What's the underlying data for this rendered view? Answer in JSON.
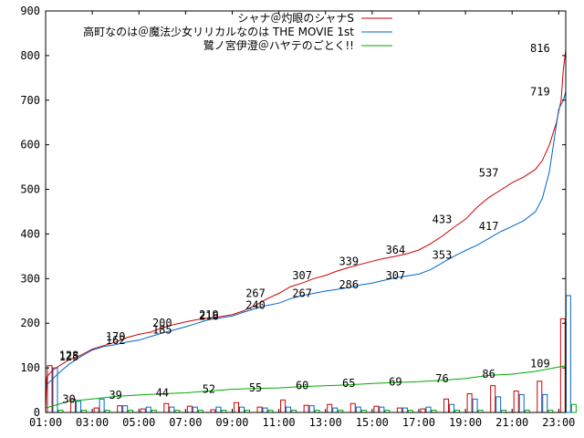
{
  "chart_data": {
    "type": "line",
    "y_ticks": [
      "0",
      "100",
      "200",
      "300",
      "400",
      "500",
      "600",
      "700",
      "800",
      "900"
    ],
    "ylim": [
      0,
      900
    ],
    "x_ticks": [
      "01:00",
      "03:00",
      "05:00",
      "07:00",
      "09:00",
      "11:00",
      "13:00",
      "15:00",
      "17:00",
      "19:00",
      "21:00",
      "23:00"
    ],
    "xlim": [
      1,
      23.3
    ],
    "grid": false,
    "legend_position": "top-right",
    "series": [
      {
        "name": "シャナ＠灼眼のシャナS",
        "color": "#cc0000",
        "points": [
          [
            1.0,
            5
          ],
          [
            1.05,
            80
          ],
          [
            1.3,
            95
          ],
          [
            1.6,
            105
          ],
          [
            2.0,
            118
          ],
          [
            2.5,
            128
          ],
          [
            3.0,
            142
          ],
          [
            3.5,
            150
          ],
          [
            4.0,
            158
          ],
          [
            4.5,
            168
          ],
          [
            5.0,
            175
          ],
          [
            5.5,
            180
          ],
          [
            6.0,
            190
          ],
          [
            6.5,
            197
          ],
          [
            7.0,
            203
          ],
          [
            7.5,
            208
          ],
          [
            8.0,
            212
          ],
          [
            8.5,
            215
          ],
          [
            9.0,
            219
          ],
          [
            9.5,
            228
          ],
          [
            10.0,
            240
          ],
          [
            10.5,
            255
          ],
          [
            11.0,
            267
          ],
          [
            11.5,
            282
          ],
          [
            12.0,
            290
          ],
          [
            12.5,
            300
          ],
          [
            13.0,
            307
          ],
          [
            13.5,
            317
          ],
          [
            14.0,
            325
          ],
          [
            14.5,
            332
          ],
          [
            15.0,
            339
          ],
          [
            15.5,
            345
          ],
          [
            16.0,
            350
          ],
          [
            16.5,
            356
          ],
          [
            17.0,
            364
          ],
          [
            17.5,
            378
          ],
          [
            18.0,
            395
          ],
          [
            18.5,
            415
          ],
          [
            19.0,
            433
          ],
          [
            19.5,
            460
          ],
          [
            20.0,
            482
          ],
          [
            20.5,
            498
          ],
          [
            21.0,
            515
          ],
          [
            21.5,
            528
          ],
          [
            22.0,
            545
          ],
          [
            22.3,
            565
          ],
          [
            22.6,
            600
          ],
          [
            22.9,
            650
          ],
          [
            23.1,
            700
          ],
          [
            23.2,
            770
          ],
          [
            23.3,
            812
          ]
        ],
        "labels": [
          {
            "x": 2.0,
            "y": 128,
            "text": "128"
          },
          {
            "x": 4.0,
            "y": 170,
            "text": "170"
          },
          {
            "x": 6.0,
            "y": 200,
            "text": "200"
          },
          {
            "x": 8.0,
            "y": 219,
            "text": "219"
          },
          {
            "x": 10.0,
            "y": 267,
            "text": "267"
          },
          {
            "x": 12.0,
            "y": 307,
            "text": "307"
          },
          {
            "x": 14.0,
            "y": 339,
            "text": "339"
          },
          {
            "x": 16.0,
            "y": 364,
            "text": "364"
          },
          {
            "x": 18.0,
            "y": 433,
            "text": "433"
          },
          {
            "x": 20.0,
            "y": 537,
            "text": "537"
          },
          {
            "x": 22.2,
            "y": 816,
            "text": "816"
          }
        ]
      },
      {
        "name": "高町なのは＠魔法少女リリカルなのは THE MOVIE 1st",
        "color": "#0066cc",
        "points": [
          [
            1.0,
            60
          ],
          [
            1.3,
            75
          ],
          [
            1.6,
            90
          ],
          [
            2.0,
            108
          ],
          [
            2.5,
            125
          ],
          [
            3.0,
            140
          ],
          [
            3.5,
            148
          ],
          [
            4.0,
            152
          ],
          [
            4.5,
            158
          ],
          [
            5.0,
            162
          ],
          [
            5.5,
            170
          ],
          [
            6.0,
            178
          ],
          [
            6.5,
            185
          ],
          [
            7.0,
            192
          ],
          [
            7.5,
            200
          ],
          [
            8.0,
            208
          ],
          [
            8.5,
            212
          ],
          [
            9.0,
            216
          ],
          [
            9.5,
            225
          ],
          [
            10.0,
            233
          ],
          [
            10.5,
            240
          ],
          [
            11.0,
            245
          ],
          [
            11.5,
            255
          ],
          [
            12.0,
            262
          ],
          [
            12.5,
            267
          ],
          [
            13.0,
            272
          ],
          [
            13.5,
            276
          ],
          [
            14.0,
            280
          ],
          [
            14.5,
            286
          ],
          [
            15.0,
            290
          ],
          [
            15.5,
            296
          ],
          [
            16.0,
            302
          ],
          [
            16.5,
            306
          ],
          [
            17.0,
            310
          ],
          [
            17.5,
            320
          ],
          [
            18.0,
            335
          ],
          [
            18.5,
            350
          ],
          [
            19.0,
            363
          ],
          [
            19.5,
            375
          ],
          [
            20.0,
            390
          ],
          [
            20.5,
            405
          ],
          [
            21.0,
            417
          ],
          [
            21.5,
            430
          ],
          [
            22.0,
            450
          ],
          [
            22.3,
            480
          ],
          [
            22.6,
            540
          ],
          [
            22.8,
            610
          ],
          [
            23.0,
            680
          ],
          [
            23.2,
            700
          ],
          [
            23.3,
            719
          ]
        ],
        "labels": [
          {
            "x": 2.0,
            "y": 125,
            "text": "125"
          },
          {
            "x": 4.0,
            "y": 162,
            "text": "162"
          },
          {
            "x": 6.0,
            "y": 185,
            "text": "185"
          },
          {
            "x": 8.0,
            "y": 216,
            "text": "216"
          },
          {
            "x": 10.0,
            "y": 240,
            "text": "240"
          },
          {
            "x": 12.0,
            "y": 267,
            "text": "267"
          },
          {
            "x": 14.0,
            "y": 286,
            "text": "286"
          },
          {
            "x": 16.0,
            "y": 307,
            "text": "307"
          },
          {
            "x": 18.0,
            "y": 353,
            "text": "353"
          },
          {
            "x": 20.0,
            "y": 417,
            "text": "417"
          },
          {
            "x": 22.2,
            "y": 719,
            "text": "719"
          }
        ]
      },
      {
        "name": "鷺ノ宮伊澄＠ハヤテのごとく!!",
        "color": "#00aa00",
        "points": [
          [
            1.0,
            10
          ],
          [
            2.0,
            25
          ],
          [
            3.0,
            30
          ],
          [
            4.0,
            36
          ],
          [
            5.0,
            39
          ],
          [
            6.0,
            42
          ],
          [
            7.0,
            44
          ],
          [
            8.0,
            48
          ],
          [
            9.0,
            52
          ],
          [
            10.0,
            54
          ],
          [
            11.0,
            55
          ],
          [
            12.0,
            58
          ],
          [
            13.0,
            60
          ],
          [
            14.0,
            62
          ],
          [
            15.0,
            65
          ],
          [
            16.0,
            67
          ],
          [
            17.0,
            69
          ],
          [
            18.0,
            72
          ],
          [
            19.0,
            76
          ],
          [
            20.0,
            83
          ],
          [
            21.0,
            86
          ],
          [
            22.0,
            92
          ],
          [
            23.3,
            105
          ]
        ],
        "labels": [
          {
            "x": 2.0,
            "y": 30,
            "text": "30"
          },
          {
            "x": 4.0,
            "y": 39,
            "text": "39"
          },
          {
            "x": 6.0,
            "y": 44,
            "text": "44"
          },
          {
            "x": 8.0,
            "y": 52,
            "text": "52"
          },
          {
            "x": 10.0,
            "y": 55,
            "text": "55"
          },
          {
            "x": 12.0,
            "y": 60,
            "text": "60"
          },
          {
            "x": 14.0,
            "y": 65,
            "text": "65"
          },
          {
            "x": 16.0,
            "y": 69,
            "text": "69"
          },
          {
            "x": 18.0,
            "y": 76,
            "text": "76"
          },
          {
            "x": 20.0,
            "y": 86,
            "text": "86"
          },
          {
            "x": 22.2,
            "y": 109,
            "text": "109"
          }
        ]
      }
    ],
    "hourly_bars": {
      "hours": [
        1,
        2,
        3,
        4,
        5,
        6,
        7,
        8,
        9,
        10,
        11,
        12,
        13,
        14,
        15,
        16,
        17,
        18,
        19,
        20,
        21,
        22,
        23
      ],
      "values_by_series": [
        [
          105,
          30,
          10,
          15,
          8,
          20,
          14,
          6,
          22,
          12,
          28,
          16,
          18,
          20,
          14,
          10,
          8,
          30,
          42,
          60,
          48,
          70,
          210
        ],
        [
          100,
          25,
          30,
          15,
          12,
          12,
          12,
          12,
          12,
          10,
          12,
          15,
          10,
          12,
          12,
          10,
          12,
          18,
          30,
          35,
          40,
          40,
          262
        ],
        [
          5,
          5,
          5,
          5,
          5,
          5,
          5,
          5,
          5,
          5,
          5,
          5,
          5,
          5,
          5,
          5,
          5,
          5,
          5,
          5,
          5,
          5,
          18
        ]
      ]
    }
  }
}
